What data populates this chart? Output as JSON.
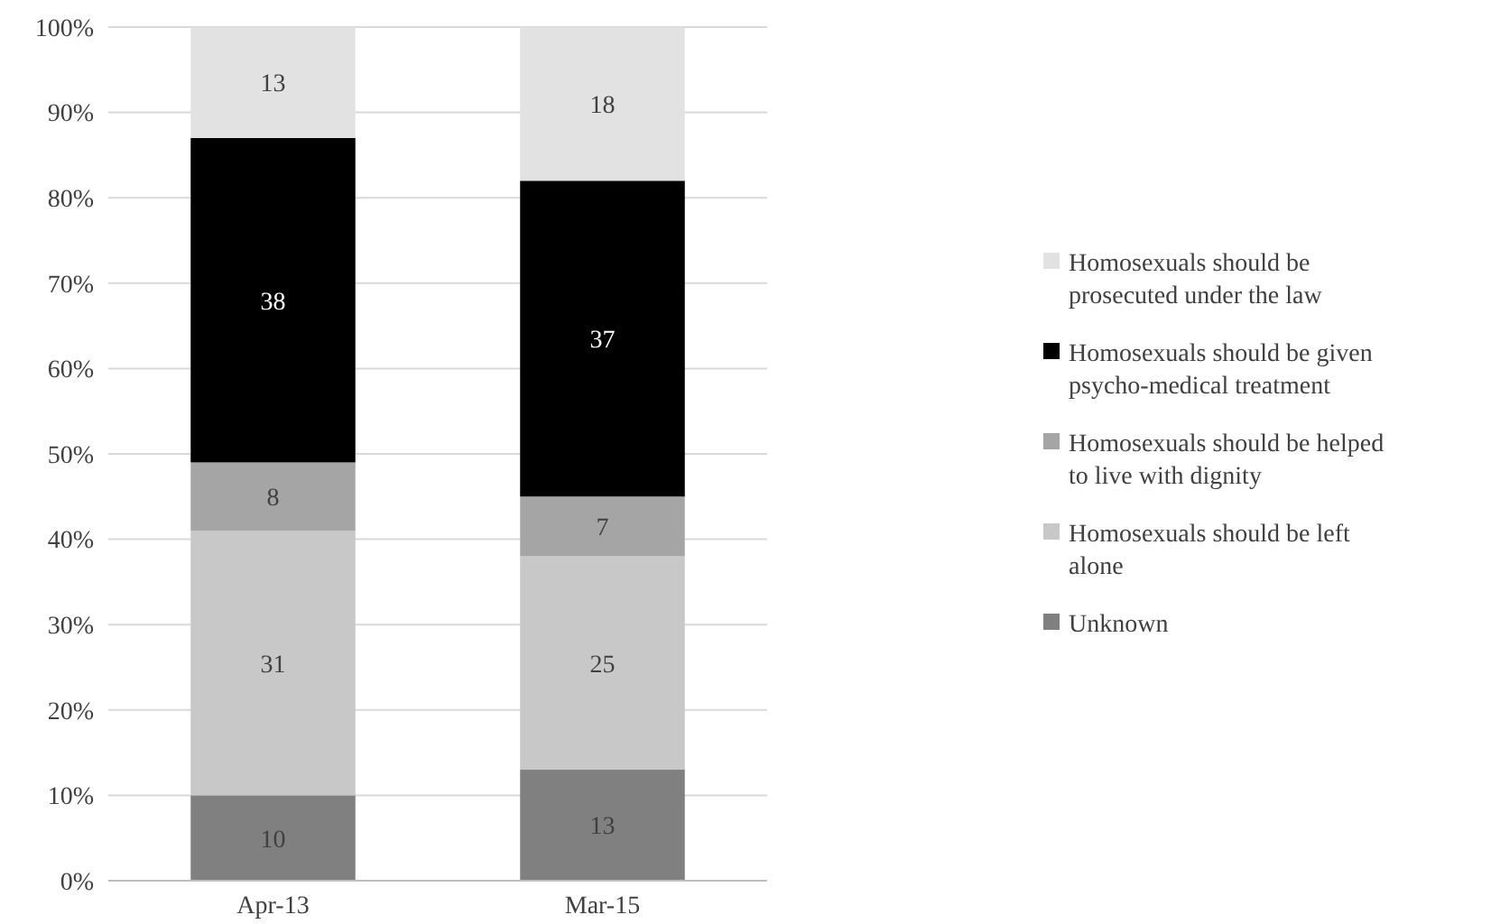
{
  "chart_data": {
    "type": "bar",
    "stacked": true,
    "categories": [
      "Apr-13",
      "Mar-15"
    ],
    "series": [
      {
        "name": "Unknown",
        "color": "#808080",
        "values": [
          10,
          13
        ]
      },
      {
        "name": "Homosexuals should be left alone",
        "color": "#c8c8c8",
        "values": [
          31,
          25
        ]
      },
      {
        "name": "Homosexuals should be helped to live with dignity",
        "color": "#a5a5a5",
        "values": [
          8,
          7
        ]
      },
      {
        "name": "Homosexuals should be given psycho-medical treatment",
        "color": "#000000",
        "values": [
          38,
          37
        ]
      },
      {
        "name": "Homosexuals should be prosecuted under the law",
        "color": "#e2e2e2",
        "values": [
          13,
          18
        ]
      }
    ],
    "ylim": [
      0,
      100
    ],
    "yticks": [
      {
        "value": 0,
        "label": "0%"
      },
      {
        "value": 10,
        "label": "10%"
      },
      {
        "value": 20,
        "label": "20%"
      },
      {
        "value": 30,
        "label": "30%"
      },
      {
        "value": 40,
        "label": "40%"
      },
      {
        "value": 50,
        "label": "50%"
      },
      {
        "value": 60,
        "label": "60%"
      },
      {
        "value": 70,
        "label": "70%"
      },
      {
        "value": 80,
        "label": "80%"
      },
      {
        "value": 90,
        "label": "90%"
      },
      {
        "value": 100,
        "label": "100%"
      }
    ],
    "grid": "y",
    "legend": "right",
    "data_labels": true
  }
}
